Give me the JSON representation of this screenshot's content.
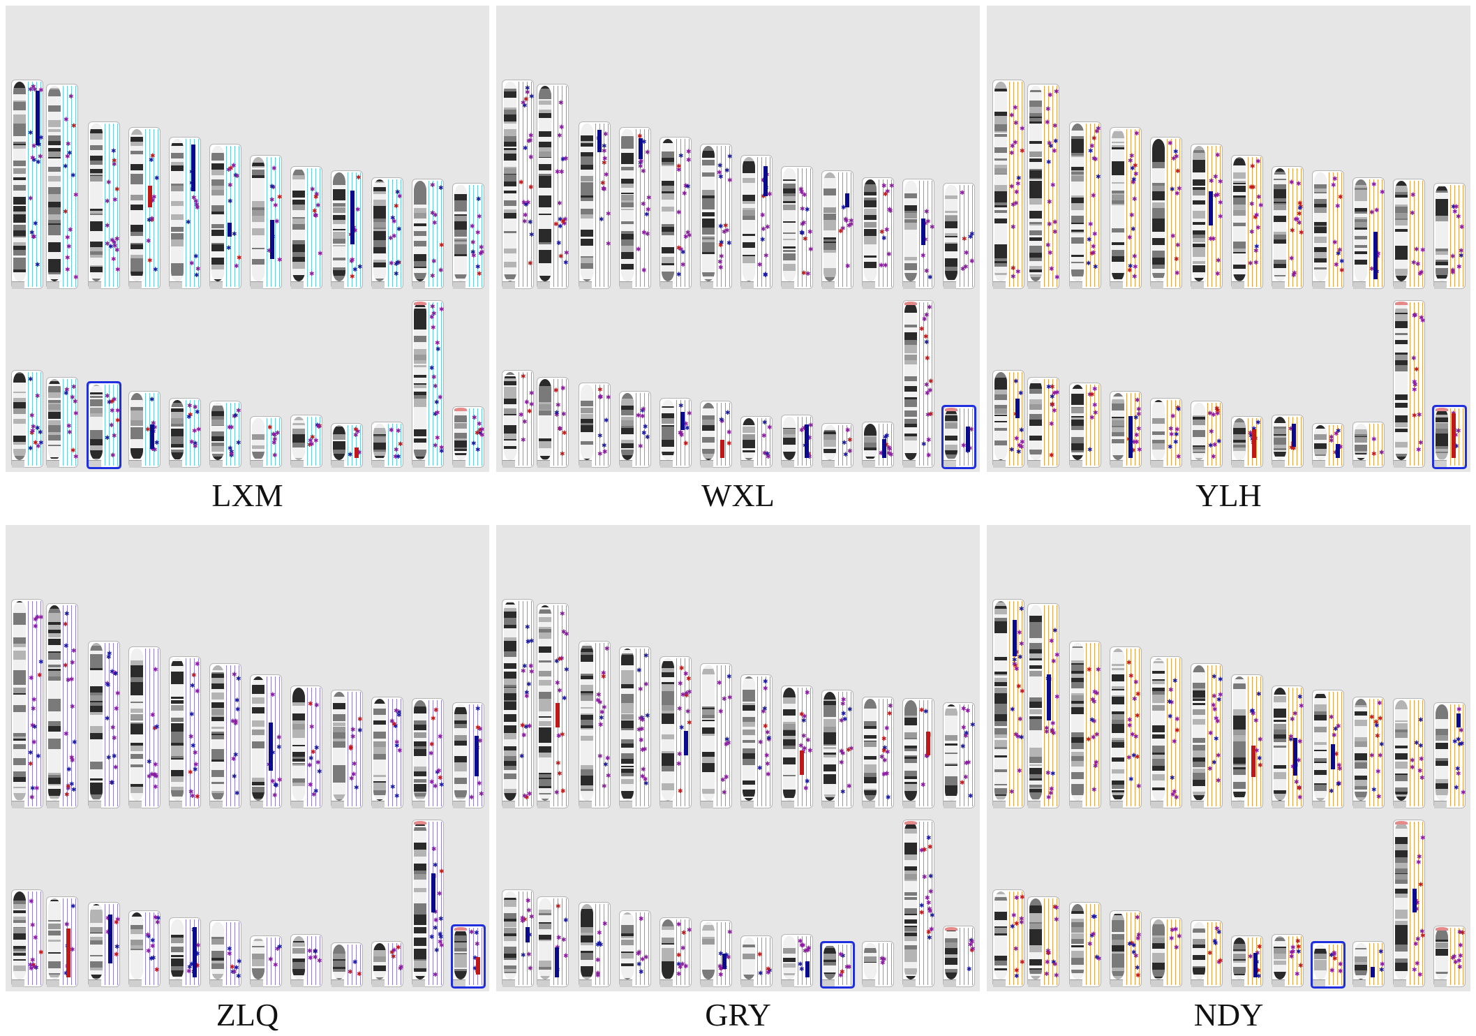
{
  "figure": {
    "panels": [
      {
        "label": "LXM",
        "guide_color": "#5fd0e0",
        "highlight_index": 2,
        "highlight_row": "bottom"
      },
      {
        "label": "WXL",
        "guide_color": "#55c955",
        "highlight_index": 11,
        "highlight_row": "bottom"
      },
      {
        "label": "YLH",
        "guide_color": "#f0a040",
        "highlight_index": 11,
        "highlight_row": "bottom"
      },
      {
        "label": "ZLQ",
        "guide_color": "#8e7ee8",
        "highlight_index": 11,
        "highlight_row": "bottom"
      },
      {
        "label": "GRY",
        "guide_color": "#55c955",
        "highlight_index": 8,
        "highlight_row": "bottom"
      },
      {
        "label": "NDY",
        "guide_color": "#f0a040",
        "highlight_index": 8,
        "highlight_row": "bottom"
      }
    ],
    "colors": {
      "panel_bg": "#e6e6e6",
      "marker_purple": "#8a1aa0",
      "marker_blue": "#1a1aa0",
      "marker_red": "#c01818",
      "block_navy": "#0a0a8c",
      "highlight": "#1f2fe0"
    },
    "marker_symbol": "✱"
  }
}
